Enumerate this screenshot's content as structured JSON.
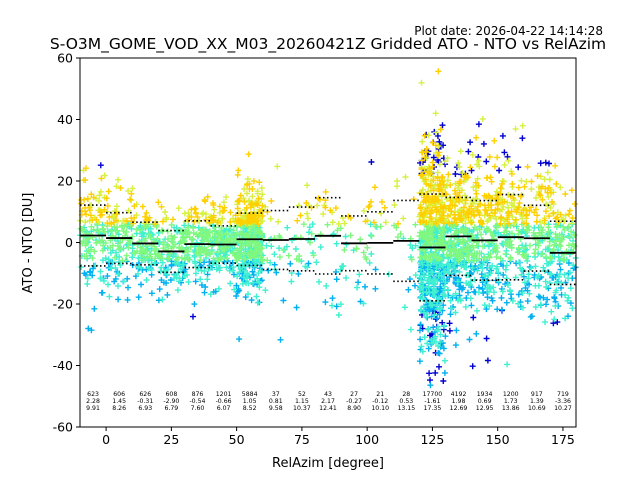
{
  "figure": {
    "plot_date": "Plot date: 2026-04-22 14:14:28"
  },
  "chart_data": {
    "type": "scatter",
    "title": "S-O3M_GOME_VOD_XX_M03_20260421Z Gridded ATO - NTO vs RelAzim",
    "xlabel": "RelAzim [degree]",
    "ylabel": "ATO - NTO [DU]",
    "xlim": [
      -10,
      180
    ],
    "ylim": [
      -60,
      60
    ],
    "xticks": [
      0,
      25,
      50,
      75,
      100,
      125,
      150,
      175
    ],
    "yticks": [
      -60,
      -40,
      -20,
      0,
      20,
      40,
      60
    ],
    "grid": false,
    "legend": "none",
    "marker": "+",
    "point_colors": [
      "#0000d0",
      "#00b0f0",
      "#40f0d0",
      "#80f880",
      "#d8f040",
      "#ffd000"
    ],
    "bins": [
      {
        "center": -5,
        "count": "623",
        "mean": "2.28",
        "std": "9.91"
      },
      {
        "center": 5,
        "count": "606",
        "mean": "1.45",
        "std": "8.26"
      },
      {
        "center": 15,
        "count": "626",
        "mean": "-0.31",
        "std": "6.93"
      },
      {
        "center": 25,
        "count": "608",
        "mean": "-2.90",
        "std": "6.79"
      },
      {
        "center": 35,
        "count": "876",
        "mean": "-0.54",
        "std": "7.60"
      },
      {
        "center": 45,
        "count": "1201",
        "mean": "-0.66",
        "std": "6.07"
      },
      {
        "center": 55,
        "count": "5884",
        "mean": "1.05",
        "std": "8.52"
      },
      {
        "center": 65,
        "count": "37",
        "mean": "0.81",
        "std": "9.58"
      },
      {
        "center": 75,
        "count": "52",
        "mean": "1.15",
        "std": "10.37"
      },
      {
        "center": 85,
        "count": "43",
        "mean": "2.17",
        "std": "12.41"
      },
      {
        "center": 95,
        "count": "27",
        "mean": "-0.27",
        "std": "8.90"
      },
      {
        "center": 105,
        "count": "21",
        "mean": "-0.12",
        "std": "10.10"
      },
      {
        "center": 115,
        "count": "28",
        "mean": "0.53",
        "std": "13.15"
      },
      {
        "center": 125,
        "count": "17700",
        "mean": "-1.61",
        "std": "17.35"
      },
      {
        "center": 135,
        "count": "4192",
        "mean": "1.98",
        "std": "12.69"
      },
      {
        "center": 145,
        "count": "1934",
        "mean": "0.69",
        "std": "12.95"
      },
      {
        "center": 155,
        "count": "1200",
        "mean": "1.73",
        "std": "13.86"
      },
      {
        "center": 165,
        "count": "917",
        "mean": "1.39",
        "std": "10.69"
      },
      {
        "center": 175,
        "count": "719",
        "mean": "-3.36",
        "std": "10.27"
      }
    ]
  }
}
